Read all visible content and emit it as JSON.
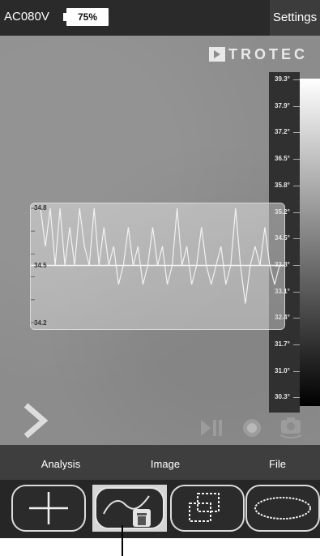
{
  "status_bar": {
    "device_name": "AC080V",
    "battery_label": "75%",
    "battery_level": 0.75,
    "settings_label": "Settings"
  },
  "logo": {
    "text": "TROTEC"
  },
  "temperature_scale": {
    "labels": [
      "39.3°",
      "37.9°",
      "37.2°",
      "36.5°",
      "35.8°",
      "35.2°",
      "34.5°",
      "33.8°",
      "33.1°",
      "32.4°",
      "31.7°",
      "31.0°",
      "30.3°"
    ],
    "gradient_top": "#ffffff",
    "gradient_bottom": "#000000"
  },
  "analysis_panel": {
    "y_labels": [
      "34.8",
      "34.5",
      "34.2"
    ],
    "y_range": [
      34.2,
      34.8
    ],
    "series": [
      34.8,
      34.6,
      34.8,
      34.5,
      34.8,
      34.5,
      34.7,
      34.5,
      34.8,
      34.6,
      34.5,
      34.8,
      34.5,
      34.7,
      34.5,
      34.6,
      34.4,
      34.5,
      34.7,
      34.5,
      34.6,
      34.4,
      34.5,
      34.7,
      34.5,
      34.6,
      34.4,
      34.5,
      34.8,
      34.5,
      34.6,
      34.4,
      34.5,
      34.7,
      34.5,
      34.4,
      34.5,
      34.6,
      34.4,
      34.5,
      34.8,
      34.5,
      34.3,
      34.5,
      34.6,
      34.5,
      34.7,
      34.5,
      34.4,
      34.5
    ],
    "line_color": "#f2f2f2"
  },
  "tabs": [
    {
      "label": "Analysis"
    },
    {
      "label": "Image"
    },
    {
      "label": "File"
    }
  ],
  "tools": [
    {
      "name": "crosshair",
      "icon": "crosshair-icon",
      "selected": false
    },
    {
      "name": "curve",
      "icon": "curve-trash-icon",
      "selected": true
    },
    {
      "name": "rectangle",
      "icon": "overlapping-squares-icon",
      "selected": false
    },
    {
      "name": "ellipse",
      "icon": "ellipse-icon",
      "selected": false
    }
  ]
}
